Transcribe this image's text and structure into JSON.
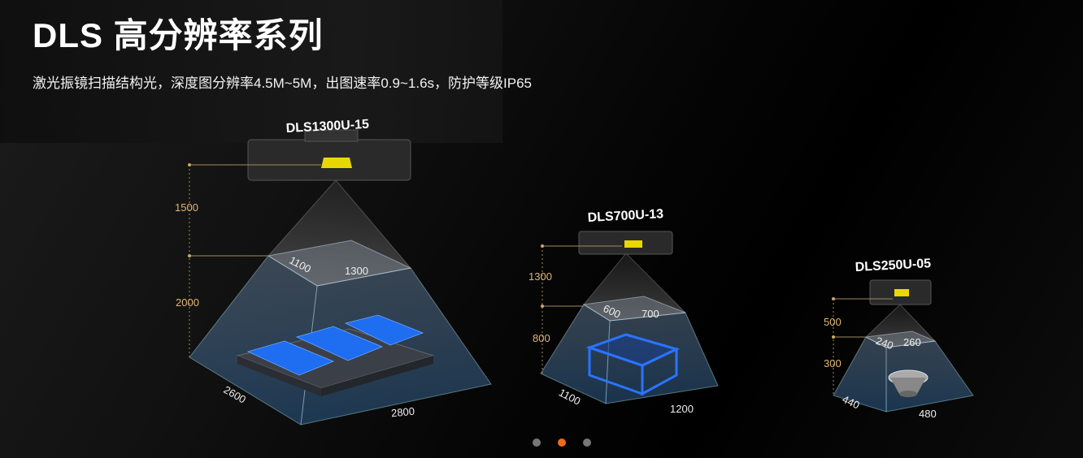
{
  "header": {
    "title": "DLS 高分辨率系列",
    "subtitle": "激光振镜扫描结构光，深度图分辨率4.5M~5M，出图速率0.9~1.6s，防护等级IP65"
  },
  "products": [
    {
      "model": "DLS1300U-15",
      "heights": [
        "1500",
        "2000"
      ],
      "near_dims": [
        "1100",
        "1300"
      ],
      "far_dims": [
        "2600",
        "2800"
      ]
    },
    {
      "model": "DLS700U-13",
      "heights": [
        "1300",
        "800"
      ],
      "near_dims": [
        "600",
        "700"
      ],
      "far_dims": [
        "1100",
        "1200"
      ]
    },
    {
      "model": "DLS250U-05",
      "heights": [
        "500",
        "300"
      ],
      "near_dims": [
        "240",
        "260"
      ],
      "far_dims": [
        "440",
        "480"
      ]
    }
  ],
  "carousel": {
    "count": 3,
    "active_index": 1,
    "accent": "#f26a1b"
  },
  "colors": {
    "height_label": "#e0b66e",
    "object_blue": "#1f6df0"
  }
}
